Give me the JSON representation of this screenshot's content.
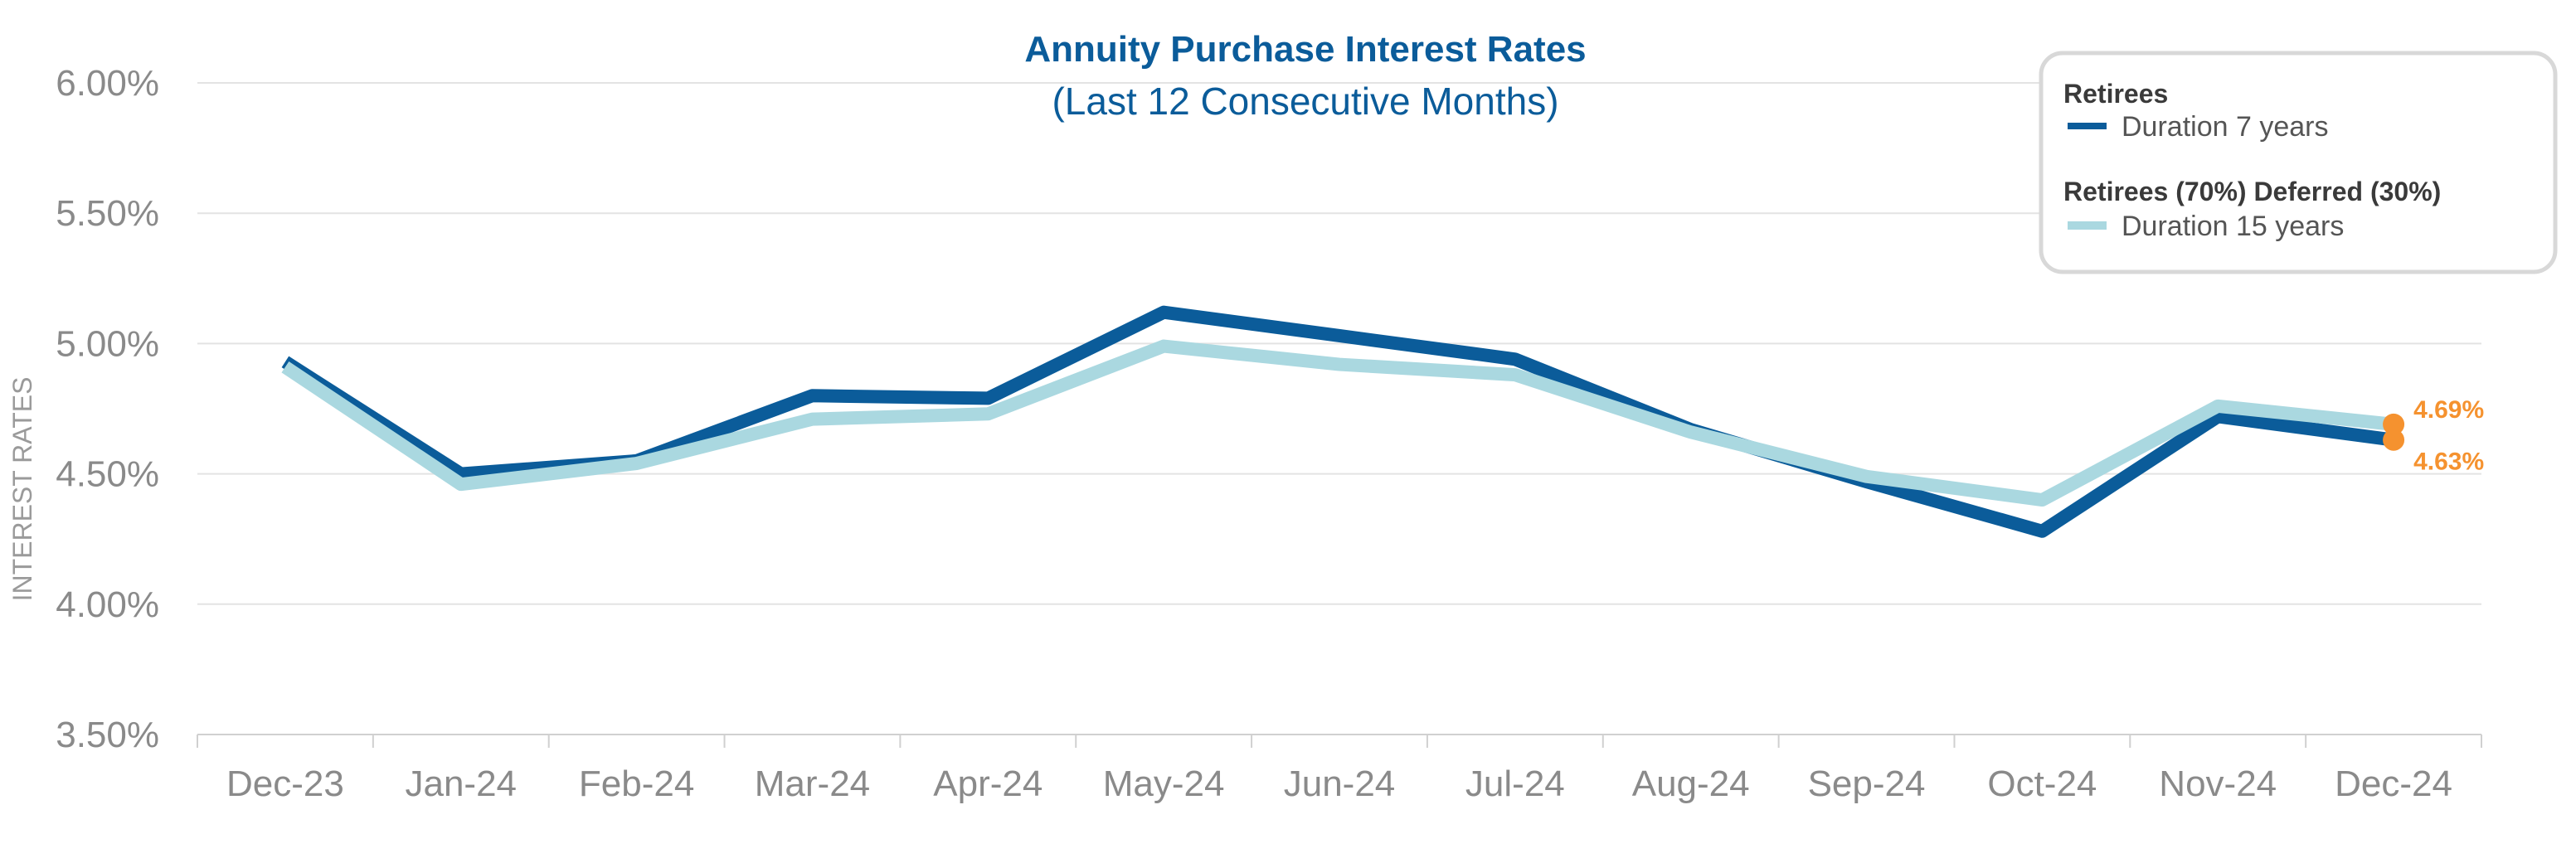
{
  "colors": {
    "series1": "#0b5c9a",
    "series2": "#aad8e0",
    "highlight": "#f5922f",
    "title": "#0b5c9a",
    "grid": "#e3e3e3",
    "axis_text": "#8a8a8a"
  },
  "chart_data": {
    "type": "line",
    "title": "Annuity Purchase Interest Rates",
    "subtitle": "(Last 12 Consecutive Months)",
    "xlabel": "",
    "ylabel": "INTEREST RATES",
    "ylim": [
      3.5,
      6.0
    ],
    "yticks": [
      "6.00%",
      "5.50%",
      "5.00%",
      "4.50%",
      "4.00%",
      "3.50%"
    ],
    "ytick_values": [
      6.0,
      5.5,
      5.0,
      4.5,
      4.0,
      3.5
    ],
    "grid": true,
    "legend_position": "top-right",
    "categories": [
      "Dec-23",
      "Jan-24",
      "Feb-24",
      "Mar-24",
      "Apr-24",
      "May-24",
      "Jun-24",
      "Jul-24",
      "Aug-24",
      "Sep-24",
      "Oct-24",
      "Nov-24",
      "Dec-24"
    ],
    "series": [
      {
        "group": "Retirees",
        "name": "Duration 7 years",
        "values": [
          4.93,
          4.5,
          4.55,
          4.8,
          4.79,
          5.12,
          5.03,
          4.94,
          4.67,
          4.47,
          4.28,
          4.72,
          4.63
        ]
      },
      {
        "group": "Retirees (70%) Deferred (30%)",
        "name": "Duration 15 years",
        "values": [
          4.91,
          4.46,
          4.54,
          4.71,
          4.73,
          4.99,
          4.92,
          4.88,
          4.66,
          4.49,
          4.4,
          4.76,
          4.69
        ]
      }
    ],
    "annotations": [
      {
        "label": "4.69%",
        "series": 1,
        "category": "Dec-24",
        "value": 4.69
      },
      {
        "label": "4.63%",
        "series": 0,
        "category": "Dec-24",
        "value": 4.63
      }
    ]
  }
}
